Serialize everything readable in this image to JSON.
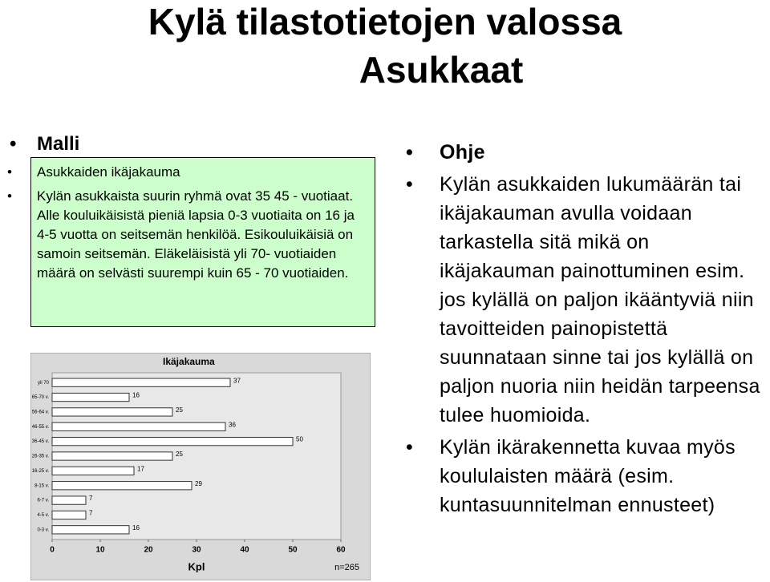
{
  "title": "Kylä tilastotietojen valossa",
  "subtitle": "Asukkaat",
  "left": {
    "heading": "Malli",
    "items": [
      "Asukkaiden ikäjakauma",
      "Kylän asukkaista suurin ryhmä ovat 35 45 - vuotiaat. Alle kouluikäisistä pieniä lapsia 0-3 vuotiaita on 16 ja 4-5 vuotta on seitsemän henkilöä. Esikouluikäisiä on samoin seitsemän. Eläkeläisistä yli 70- vuotiaiden määrä on selvästi suurempi kuin 65 - 70 vuotiaiden."
    ]
  },
  "right": {
    "heading": "Ohje",
    "items": [
      "Kylän asukkaiden lukumäärän tai ikäjakauman avulla voidaan tarkastella sitä mikä on ikäjakauman painottuminen esim. jos kylällä on paljon ikääntyviä niin tavoitteiden painopistettä suunnataan sinne tai jos kylällä on paljon nuoria niin heidän tarpeensa tulee huomioida.",
      "Kylän ikärakennetta kuvaa myös koululaisten määrä (esim. kuntasuunnitelman ennusteet)"
    ]
  },
  "chart_data": {
    "type": "bar",
    "orientation": "horizontal",
    "title": "Ikäjakauma",
    "x_label": "Kpl",
    "annotation": "n=265",
    "categories": [
      "yli 70",
      "65-70 v.",
      "56-64 v.",
      "46-55 v.",
      "36-45 v.",
      "26-35 v.",
      "16-25 v.",
      "8-15 v.",
      "6-7 v.",
      "4-5 v.",
      "0-3 v."
    ],
    "values": [
      37,
      16,
      25,
      36,
      50,
      25,
      17,
      29,
      7,
      7,
      16
    ],
    "color": "#ffffff",
    "xlim": [
      0,
      60
    ],
    "xticks": [
      0,
      10,
      20,
      30,
      40,
      50,
      60
    ],
    "grid": false
  }
}
